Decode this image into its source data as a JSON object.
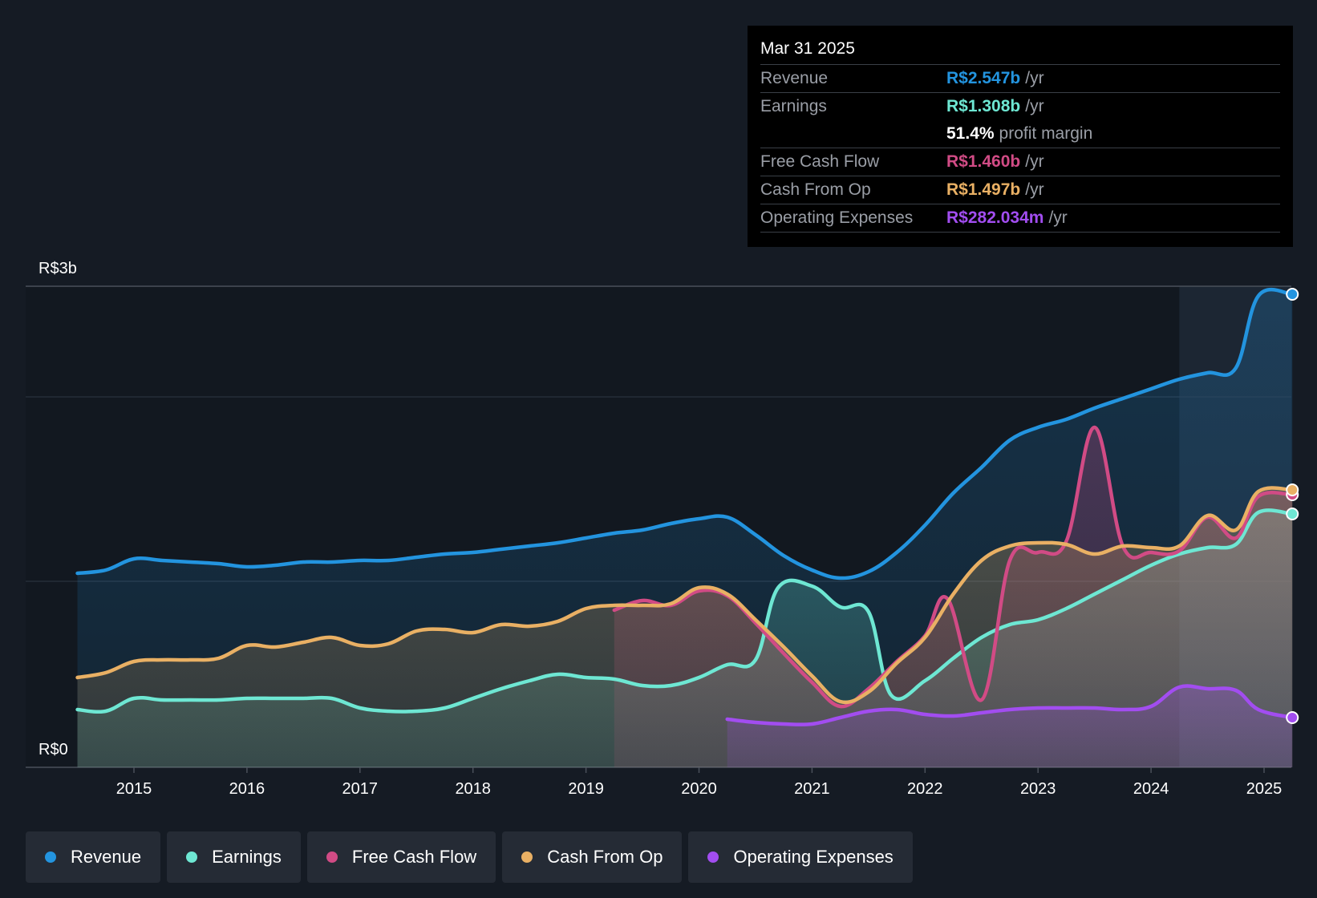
{
  "tooltip": {
    "date": "Mar 31 2025",
    "rows": [
      {
        "name": "Revenue",
        "value": "R$2.547b",
        "unit": "/yr",
        "color": "#2394df"
      },
      {
        "name": "Earnings",
        "value": "R$1.308b",
        "unit": "/yr",
        "color": "#6ee7d3"
      },
      {
        "name": "",
        "value": "51.4%",
        "unit": "profit margin",
        "color": "#ffffff"
      },
      {
        "name": "Free Cash Flow",
        "value": "R$1.460b",
        "unit": "/yr",
        "color": "#d14b85"
      },
      {
        "name": "Cash From Op",
        "value": "R$1.497b",
        "unit": "/yr",
        "color": "#e9b064"
      },
      {
        "name": "Operating Expenses",
        "value": "R$282.034m",
        "unit": "/yr",
        "color": "#a24df0"
      }
    ]
  },
  "legend": [
    {
      "label": "Revenue",
      "color": "#2394df"
    },
    {
      "label": "Earnings",
      "color": "#6ee7d3"
    },
    {
      "label": "Free Cash Flow",
      "color": "#d14b85"
    },
    {
      "label": "Cash From Op",
      "color": "#e9b064"
    },
    {
      "label": "Operating Expenses",
      "color": "#a24df0"
    }
  ],
  "chart_data": {
    "type": "area",
    "title": "",
    "xlabel": "",
    "ylabel": "",
    "y_tick_labels": [
      {
        "value": 3,
        "label": "R$3b"
      },
      {
        "value": 0,
        "label": "R$0"
      }
    ],
    "ylim": [
      0,
      3
    ],
    "xlim": [
      2014.05,
      2025.3
    ],
    "x_ticks": [
      2015,
      2016,
      2017,
      2018,
      2019,
      2020,
      2021,
      2022,
      2023,
      2024,
      2025
    ],
    "gridlines": [
      3,
      2.31,
      1.16
    ],
    "forecast_shade_from": 2024.25,
    "series": [
      {
        "name": "Revenue",
        "color": "#2394df",
        "points": [
          [
            2014.5,
            1.21
          ],
          [
            2014.75,
            1.23
          ],
          [
            2015.0,
            1.3
          ],
          [
            2015.25,
            1.29
          ],
          [
            2015.5,
            1.28
          ],
          [
            2015.75,
            1.27
          ],
          [
            2016.0,
            1.25
          ],
          [
            2016.25,
            1.26
          ],
          [
            2016.5,
            1.28
          ],
          [
            2016.75,
            1.28
          ],
          [
            2017.0,
            1.29
          ],
          [
            2017.25,
            1.29
          ],
          [
            2017.5,
            1.31
          ],
          [
            2017.75,
            1.33
          ],
          [
            2018.0,
            1.34
          ],
          [
            2018.25,
            1.36
          ],
          [
            2018.5,
            1.38
          ],
          [
            2018.75,
            1.4
          ],
          [
            2019.0,
            1.43
          ],
          [
            2019.25,
            1.46
          ],
          [
            2019.5,
            1.48
          ],
          [
            2019.75,
            1.52
          ],
          [
            2020.0,
            1.55
          ],
          [
            2020.25,
            1.56
          ],
          [
            2020.5,
            1.45
          ],
          [
            2020.75,
            1.32
          ],
          [
            2021.0,
            1.23
          ],
          [
            2021.25,
            1.18
          ],
          [
            2021.5,
            1.22
          ],
          [
            2021.75,
            1.34
          ],
          [
            2022.0,
            1.51
          ],
          [
            2022.25,
            1.71
          ],
          [
            2022.5,
            1.87
          ],
          [
            2022.75,
            2.04
          ],
          [
            2023.0,
            2.12
          ],
          [
            2023.25,
            2.17
          ],
          [
            2023.5,
            2.24
          ],
          [
            2023.75,
            2.3
          ],
          [
            2024.0,
            2.36
          ],
          [
            2024.25,
            2.42
          ],
          [
            2024.5,
            2.46
          ],
          [
            2024.75,
            2.49
          ],
          [
            2024.95,
            2.94
          ],
          [
            2025.25,
            2.95
          ]
        ]
      },
      {
        "name": "Earnings",
        "color": "#6ee7d3",
        "points": [
          [
            2014.5,
            0.36
          ],
          [
            2014.75,
            0.35
          ],
          [
            2015.0,
            0.43
          ],
          [
            2015.25,
            0.42
          ],
          [
            2015.5,
            0.42
          ],
          [
            2015.75,
            0.42
          ],
          [
            2016.0,
            0.43
          ],
          [
            2016.25,
            0.43
          ],
          [
            2016.5,
            0.43
          ],
          [
            2016.75,
            0.43
          ],
          [
            2017.0,
            0.37
          ],
          [
            2017.25,
            0.35
          ],
          [
            2017.5,
            0.35
          ],
          [
            2017.75,
            0.37
          ],
          [
            2018.0,
            0.43
          ],
          [
            2018.25,
            0.49
          ],
          [
            2018.5,
            0.54
          ],
          [
            2018.75,
            0.58
          ],
          [
            2019.0,
            0.56
          ],
          [
            2019.25,
            0.55
          ],
          [
            2019.5,
            0.51
          ],
          [
            2019.75,
            0.51
          ],
          [
            2020.0,
            0.56
          ],
          [
            2020.25,
            0.64
          ],
          [
            2020.5,
            0.67
          ],
          [
            2020.7,
            1.12
          ],
          [
            2021.0,
            1.13
          ],
          [
            2021.25,
            1.0
          ],
          [
            2021.5,
            0.97
          ],
          [
            2021.7,
            0.45
          ],
          [
            2022.0,
            0.54
          ],
          [
            2022.25,
            0.68
          ],
          [
            2022.5,
            0.81
          ],
          [
            2022.75,
            0.89
          ],
          [
            2023.0,
            0.92
          ],
          [
            2023.25,
            0.99
          ],
          [
            2023.5,
            1.08
          ],
          [
            2023.75,
            1.17
          ],
          [
            2024.0,
            1.26
          ],
          [
            2024.25,
            1.33
          ],
          [
            2024.5,
            1.37
          ],
          [
            2024.75,
            1.39
          ],
          [
            2024.95,
            1.59
          ],
          [
            2025.25,
            1.58
          ]
        ]
      },
      {
        "name": "Free Cash Flow",
        "color": "#d14b85",
        "points": [
          [
            2019.25,
            0.98
          ],
          [
            2019.5,
            1.04
          ],
          [
            2019.75,
            1.01
          ],
          [
            2020.0,
            1.1
          ],
          [
            2020.25,
            1.07
          ],
          [
            2020.5,
            0.9
          ],
          [
            2020.75,
            0.71
          ],
          [
            2021.0,
            0.53
          ],
          [
            2021.25,
            0.38
          ],
          [
            2021.5,
            0.49
          ],
          [
            2021.75,
            0.66
          ],
          [
            2022.0,
            0.82
          ],
          [
            2022.2,
            1.05
          ],
          [
            2022.5,
            0.42
          ],
          [
            2022.75,
            1.29
          ],
          [
            2023.0,
            1.34
          ],
          [
            2023.25,
            1.41
          ],
          [
            2023.5,
            2.12
          ],
          [
            2023.75,
            1.38
          ],
          [
            2024.0,
            1.34
          ],
          [
            2024.25,
            1.35
          ],
          [
            2024.5,
            1.56
          ],
          [
            2024.75,
            1.43
          ],
          [
            2024.95,
            1.69
          ],
          [
            2025.25,
            1.7
          ]
        ]
      },
      {
        "name": "Cash From Op",
        "color": "#e9b064",
        "points": [
          [
            2014.5,
            0.56
          ],
          [
            2014.75,
            0.59
          ],
          [
            2015.0,
            0.66
          ],
          [
            2015.25,
            0.67
          ],
          [
            2015.5,
            0.67
          ],
          [
            2015.75,
            0.68
          ],
          [
            2016.0,
            0.76
          ],
          [
            2016.25,
            0.75
          ],
          [
            2016.5,
            0.78
          ],
          [
            2016.75,
            0.81
          ],
          [
            2017.0,
            0.76
          ],
          [
            2017.25,
            0.77
          ],
          [
            2017.5,
            0.85
          ],
          [
            2017.75,
            0.86
          ],
          [
            2018.0,
            0.84
          ],
          [
            2018.25,
            0.89
          ],
          [
            2018.5,
            0.88
          ],
          [
            2018.75,
            0.91
          ],
          [
            2019.0,
            0.99
          ],
          [
            2019.25,
            1.01
          ],
          [
            2019.5,
            1.01
          ],
          [
            2019.75,
            1.02
          ],
          [
            2020.0,
            1.12
          ],
          [
            2020.25,
            1.08
          ],
          [
            2020.5,
            0.92
          ],
          [
            2020.75,
            0.75
          ],
          [
            2021.0,
            0.57
          ],
          [
            2021.25,
            0.41
          ],
          [
            2021.5,
            0.47
          ],
          [
            2021.75,
            0.65
          ],
          [
            2022.0,
            0.81
          ],
          [
            2022.25,
            1.08
          ],
          [
            2022.5,
            1.29
          ],
          [
            2022.75,
            1.38
          ],
          [
            2023.0,
            1.4
          ],
          [
            2023.25,
            1.39
          ],
          [
            2023.5,
            1.33
          ],
          [
            2023.75,
            1.38
          ],
          [
            2024.0,
            1.37
          ],
          [
            2024.25,
            1.38
          ],
          [
            2024.5,
            1.57
          ],
          [
            2024.75,
            1.48
          ],
          [
            2024.95,
            1.72
          ],
          [
            2025.25,
            1.73
          ]
        ]
      },
      {
        "name": "Operating Expenses",
        "color": "#a24df0",
        "points": [
          [
            2020.25,
            0.3
          ],
          [
            2020.5,
            0.28
          ],
          [
            2020.75,
            0.27
          ],
          [
            2021.0,
            0.27
          ],
          [
            2021.25,
            0.31
          ],
          [
            2021.5,
            0.35
          ],
          [
            2021.75,
            0.36
          ],
          [
            2022.0,
            0.33
          ],
          [
            2022.25,
            0.32
          ],
          [
            2022.5,
            0.34
          ],
          [
            2022.75,
            0.36
          ],
          [
            2023.0,
            0.37
          ],
          [
            2023.25,
            0.37
          ],
          [
            2023.5,
            0.37
          ],
          [
            2023.75,
            0.36
          ],
          [
            2024.0,
            0.38
          ],
          [
            2024.25,
            0.5
          ],
          [
            2024.5,
            0.49
          ],
          [
            2024.75,
            0.48
          ],
          [
            2024.95,
            0.36
          ],
          [
            2025.25,
            0.31
          ]
        ]
      }
    ]
  }
}
